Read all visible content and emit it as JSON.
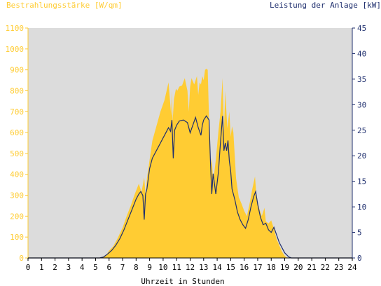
{
  "chart_data": {
    "type": "area",
    "left_axis_title": "Bestrahlungsstärke [W/qm]",
    "right_axis_title": "Leistung der Anlage [kW]",
    "xlabel": "Uhrzeit in Stunden",
    "xlim": [
      0,
      24
    ],
    "x_ticks": [
      "0",
      "1",
      "2",
      "3",
      "4",
      "5",
      "6",
      "7",
      "8",
      "9",
      "10",
      "11",
      "12",
      "13",
      "14",
      "15",
      "16",
      "17",
      "18",
      "19",
      "20",
      "21",
      "22",
      "23",
      "24"
    ],
    "ylim_left": [
      0,
      1100
    ],
    "y_ticks_left": [
      "0",
      "100",
      "200",
      "300",
      "400",
      "500",
      "600",
      "700",
      "800",
      "900",
      "1000",
      "1100"
    ],
    "ylim_right": [
      0,
      45
    ],
    "y_ticks_right": [
      "0",
      "5",
      "10",
      "15",
      "20",
      "25",
      "30",
      "35",
      "40",
      "45"
    ],
    "plot_background": "#dcdcdc",
    "colors": {
      "irradiance_fill": "#ffcc33",
      "left_axis": "#ffcc33",
      "power_line": "#1f2f6e",
      "right_axis": "#1f2f6e",
      "xaxis_text": "#000000"
    },
    "series": [
      {
        "axis": "left",
        "kind": "area",
        "x": [
          0,
          5.2,
          5.5,
          5.8,
          6.0,
          6.3,
          6.6,
          7.0,
          7.3,
          7.6,
          7.9,
          8.2,
          8.4,
          8.6,
          8.7,
          8.8,
          9.0,
          9.2,
          9.5,
          9.8,
          10.1,
          10.4,
          10.6,
          10.65,
          10.7,
          10.8,
          10.95,
          11.05,
          11.2,
          11.4,
          11.6,
          11.8,
          11.9,
          12.0,
          12.1,
          12.3,
          12.5,
          12.6,
          12.7,
          12.8,
          12.9,
          13.0,
          13.1,
          13.2,
          13.3,
          13.5,
          13.6,
          13.7,
          13.9,
          14.1,
          14.25,
          14.4,
          14.5,
          14.6,
          14.75,
          14.9,
          15.0,
          15.1,
          15.2,
          15.4,
          15.6,
          15.8,
          16.0,
          16.2,
          16.4,
          16.6,
          16.8,
          16.9,
          17.1,
          17.3,
          17.5,
          17.6,
          17.8,
          18.0,
          18.2,
          18.4,
          18.6,
          18.8,
          19.0,
          19.2,
          19.5,
          24
        ],
        "y": [
          0,
          0,
          5,
          15,
          35,
          55,
          90,
          145,
          200,
          250,
          305,
          355,
          315,
          385,
          300,
          380,
          470,
          560,
          630,
          700,
          755,
          840,
          680,
          800,
          650,
          760,
          810,
          800,
          820,
          825,
          860,
          800,
          700,
          820,
          860,
          830,
          870,
          780,
          840,
          830,
          870,
          850,
          900,
          905,
          900,
          420,
          480,
          360,
          470,
          610,
          700,
          860,
          600,
          800,
          620,
          700,
          580,
          630,
          600,
          380,
          290,
          260,
          225,
          200,
          260,
          330,
          390,
          300,
          240,
          200,
          240,
          175,
          165,
          180,
          140,
          90,
          60,
          30,
          10,
          0,
          0,
          0
        ]
      },
      {
        "axis": "right",
        "kind": "line",
        "x": [
          0,
          5.3,
          5.6,
          5.9,
          6.2,
          6.5,
          6.8,
          7.1,
          7.4,
          7.7,
          8.0,
          8.2,
          8.35,
          8.5,
          8.6,
          8.7,
          8.8,
          9.0,
          9.2,
          9.4,
          9.6,
          9.8,
          10.0,
          10.2,
          10.4,
          10.55,
          10.65,
          10.75,
          10.85,
          11.0,
          11.2,
          11.5,
          11.8,
          12.0,
          12.2,
          12.4,
          12.6,
          12.8,
          12.9,
          13.0,
          13.2,
          13.4,
          13.5,
          13.6,
          13.7,
          13.9,
          14.1,
          14.2,
          14.3,
          14.4,
          14.5,
          14.6,
          14.7,
          14.8,
          14.9,
          15.0,
          15.1,
          15.3,
          15.5,
          15.7,
          15.9,
          16.1,
          16.3,
          16.5,
          16.7,
          16.85,
          17.0,
          17.2,
          17.4,
          17.6,
          17.8,
          18.0,
          18.2,
          18.4,
          18.6,
          18.8,
          19.0,
          19.3,
          19.5,
          24
        ],
        "y": [
          0,
          0,
          0.2,
          0.8,
          1.5,
          2.5,
          3.8,
          5.5,
          7.5,
          9.5,
          11.5,
          12.5,
          13.0,
          12.2,
          7.5,
          12.5,
          13.5,
          17.5,
          19.5,
          20.5,
          21.5,
          22.5,
          23.5,
          24.5,
          25.5,
          24.8,
          27.0,
          19.5,
          25.0,
          26.0,
          26.8,
          27.0,
          26.5,
          24.5,
          26.0,
          27.5,
          25.5,
          24.0,
          26.0,
          27.0,
          27.8,
          27.0,
          19.0,
          12.5,
          16.5,
          12.5,
          17.0,
          21.0,
          24.5,
          27.8,
          21.0,
          22.5,
          21.0,
          23.0,
          19.0,
          17.0,
          13.5,
          11.5,
          9.0,
          7.5,
          6.5,
          5.8,
          7.5,
          10.0,
          12.0,
          13.0,
          10.5,
          8.0,
          6.5,
          6.8,
          5.5,
          5.0,
          6.0,
          4.5,
          3.0,
          2.0,
          1.0,
          0.2,
          0,
          0
        ]
      }
    ]
  }
}
